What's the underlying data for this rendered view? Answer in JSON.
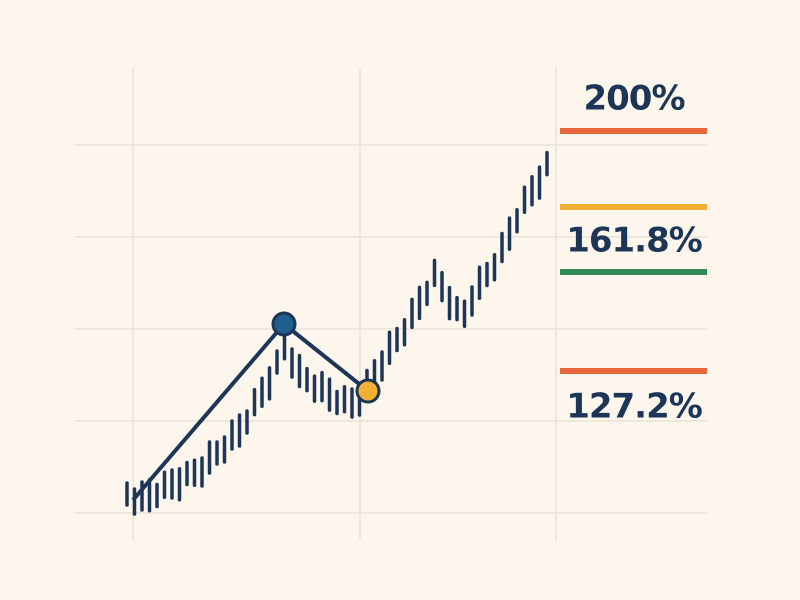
{
  "levels": [
    {
      "label": "200%"
    },
    {
      "label": "161.8%"
    },
    {
      "label": "127.2%"
    }
  ]
}
